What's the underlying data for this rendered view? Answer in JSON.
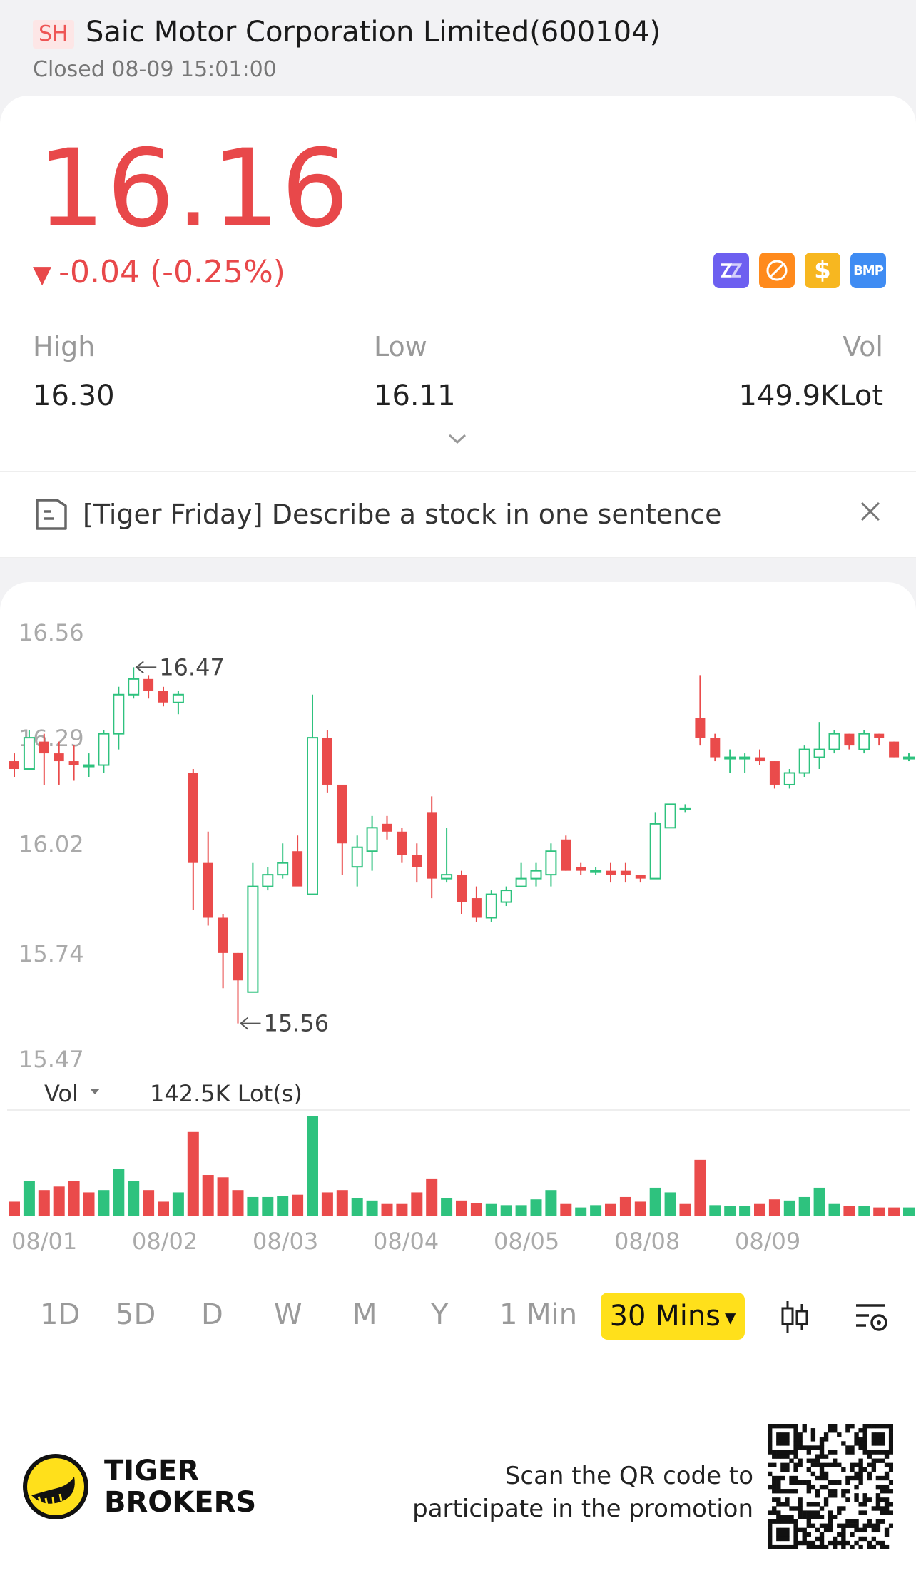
{
  "header": {
    "exchange": "SH",
    "title": "Saic Motor Corporation Limited(600104)",
    "status": "Closed 08-09 15:01:00"
  },
  "quote": {
    "price": "16.16",
    "change": "-0.04 (-0.25%)",
    "price_color": "#e8484a",
    "badges": [
      "zz-icon",
      "no-short-icon",
      "dollar-icon",
      "BMP"
    ],
    "high_label": "High",
    "high_value": "16.30",
    "low_label": "Low",
    "low_value": "16.11",
    "vol_label": "Vol",
    "vol_value": "149.9KLot"
  },
  "notice": {
    "text": "[Tiger Friday] Describe a stock in one sentence"
  },
  "chart": {
    "volume_label": "Vol",
    "volume_value": "142.5K Lot(s)",
    "high_marker": "16.47",
    "low_marker": "15.56",
    "timeframes": [
      "1D",
      "5D",
      "D",
      "W",
      "M",
      "Y",
      "1 Min"
    ],
    "active_timeframe": "30 Mins"
  },
  "chart_data": {
    "type": "candlestick",
    "y_ticks": [
      "16.56",
      "16.29",
      "16.02",
      "15.74",
      "15.47"
    ],
    "ylim": [
      15.47,
      16.56
    ],
    "x_tick_labels": [
      "08/01",
      "08/02",
      "08/03",
      "08/04",
      "08/05",
      "08/08",
      "08/09"
    ],
    "up_color": "#2ec27e",
    "down_color": "#ea4b4b",
    "candles": [
      {
        "o": 16.23,
        "h": 16.25,
        "l": 16.19,
        "c": 16.21
      },
      {
        "o": 16.21,
        "h": 16.31,
        "l": 16.21,
        "c": 16.29
      },
      {
        "o": 16.28,
        "h": 16.3,
        "l": 16.17,
        "c": 16.25
      },
      {
        "o": 16.25,
        "h": 16.28,
        "l": 16.17,
        "c": 16.23
      },
      {
        "o": 16.23,
        "h": 16.27,
        "l": 16.18,
        "c": 16.22
      },
      {
        "o": 16.22,
        "h": 16.25,
        "l": 16.19,
        "c": 16.22
      },
      {
        "o": 16.22,
        "h": 16.31,
        "l": 16.2,
        "c": 16.3
      },
      {
        "o": 16.3,
        "h": 16.42,
        "l": 16.26,
        "c": 16.4
      },
      {
        "o": 16.4,
        "h": 16.47,
        "l": 16.39,
        "c": 16.44
      },
      {
        "o": 16.44,
        "h": 16.45,
        "l": 16.39,
        "c": 16.41
      },
      {
        "o": 16.41,
        "h": 16.42,
        "l": 16.37,
        "c": 16.38
      },
      {
        "o": 16.38,
        "h": 16.41,
        "l": 16.35,
        "c": 16.4
      },
      {
        "o": 16.2,
        "h": 16.21,
        "l": 15.85,
        "c": 15.97
      },
      {
        "o": 15.97,
        "h": 16.05,
        "l": 15.81,
        "c": 15.83
      },
      {
        "o": 15.83,
        "h": 15.84,
        "l": 15.65,
        "c": 15.74
      },
      {
        "o": 15.74,
        "h": 15.74,
        "l": 15.56,
        "c": 15.67
      },
      {
        "o": 15.64,
        "h": 15.97,
        "l": 15.64,
        "c": 15.91
      },
      {
        "o": 15.91,
        "h": 15.96,
        "l": 15.9,
        "c": 15.94
      },
      {
        "o": 15.94,
        "h": 16.02,
        "l": 15.93,
        "c": 15.97
      },
      {
        "o": 16.0,
        "h": 16.04,
        "l": 15.92,
        "c": 15.91
      },
      {
        "o": 15.89,
        "h": 16.4,
        "l": 15.89,
        "c": 16.29
      },
      {
        "o": 16.29,
        "h": 16.31,
        "l": 16.15,
        "c": 16.17
      },
      {
        "o": 16.17,
        "h": 16.17,
        "l": 15.94,
        "c": 16.02
      },
      {
        "o": 15.96,
        "h": 16.04,
        "l": 15.91,
        "c": 16.01
      },
      {
        "o": 16.0,
        "h": 16.09,
        "l": 15.95,
        "c": 16.06
      },
      {
        "o": 16.07,
        "h": 16.09,
        "l": 16.03,
        "c": 16.05
      },
      {
        "o": 16.05,
        "h": 16.06,
        "l": 15.97,
        "c": 15.99
      },
      {
        "o": 15.99,
        "h": 16.02,
        "l": 15.92,
        "c": 15.96
      },
      {
        "o": 16.1,
        "h": 16.14,
        "l": 15.88,
        "c": 15.93
      },
      {
        "o": 15.93,
        "h": 16.06,
        "l": 15.92,
        "c": 15.94
      },
      {
        "o": 15.94,
        "h": 15.95,
        "l": 15.84,
        "c": 15.87
      },
      {
        "o": 15.88,
        "h": 15.91,
        "l": 15.82,
        "c": 15.83
      },
      {
        "o": 15.83,
        "h": 15.9,
        "l": 15.82,
        "c": 15.89
      },
      {
        "o": 15.87,
        "h": 15.91,
        "l": 15.86,
        "c": 15.9
      },
      {
        "o": 15.91,
        "h": 15.97,
        "l": 15.91,
        "c": 15.93
      },
      {
        "o": 15.93,
        "h": 15.97,
        "l": 15.91,
        "c": 15.95
      },
      {
        "o": 15.94,
        "h": 16.02,
        "l": 15.91,
        "c": 16.0
      },
      {
        "o": 16.03,
        "h": 16.04,
        "l": 15.95,
        "c": 15.95
      },
      {
        "o": 15.96,
        "h": 15.97,
        "l": 15.94,
        "c": 15.95
      },
      {
        "o": 15.95,
        "h": 15.96,
        "l": 15.94,
        "c": 15.95
      },
      {
        "o": 15.95,
        "h": 15.97,
        "l": 15.92,
        "c": 15.94
      },
      {
        "o": 15.95,
        "h": 15.97,
        "l": 15.92,
        "c": 15.94
      },
      {
        "o": 15.94,
        "h": 15.94,
        "l": 15.92,
        "c": 15.93
      },
      {
        "o": 15.93,
        "h": 16.1,
        "l": 15.93,
        "c": 16.07
      },
      {
        "o": 16.06,
        "h": 16.12,
        "l": 16.06,
        "c": 16.12
      },
      {
        "o": 16.11,
        "h": 16.12,
        "l": 16.1,
        "c": 16.11
      },
      {
        "o": 16.34,
        "h": 16.45,
        "l": 16.27,
        "c": 16.29
      },
      {
        "o": 16.29,
        "h": 16.3,
        "l": 16.23,
        "c": 16.24
      },
      {
        "o": 16.24,
        "h": 16.26,
        "l": 16.2,
        "c": 16.24
      },
      {
        "o": 16.24,
        "h": 16.25,
        "l": 16.2,
        "c": 16.24
      },
      {
        "o": 16.24,
        "h": 16.26,
        "l": 16.22,
        "c": 16.23
      },
      {
        "o": 16.23,
        "h": 16.23,
        "l": 16.16,
        "c": 16.17
      },
      {
        "o": 16.17,
        "h": 16.21,
        "l": 16.16,
        "c": 16.2
      },
      {
        "o": 16.2,
        "h": 16.27,
        "l": 16.19,
        "c": 16.26
      },
      {
        "o": 16.24,
        "h": 16.33,
        "l": 16.21,
        "c": 16.26
      },
      {
        "o": 16.26,
        "h": 16.31,
        "l": 16.25,
        "c": 16.3
      },
      {
        "o": 16.3,
        "h": 16.3,
        "l": 16.26,
        "c": 16.27
      },
      {
        "o": 16.26,
        "h": 16.31,
        "l": 16.25,
        "c": 16.3
      },
      {
        "o": 16.3,
        "h": 16.3,
        "l": 16.27,
        "c": 16.29
      },
      {
        "o": 16.28,
        "h": 16.28,
        "l": 16.24,
        "c": 16.24
      },
      {
        "o": 16.24,
        "h": 16.25,
        "l": 16.23,
        "c": 16.24
      },
      {
        "o": 16.23,
        "h": 16.24,
        "l": 16.22,
        "c": 16.23
      }
    ],
    "volume": [
      12,
      30,
      22,
      25,
      30,
      20,
      22,
      40,
      30,
      22,
      12,
      20,
      72,
      35,
      33,
      22,
      16,
      16,
      17,
      18,
      86,
      20,
      22,
      15,
      13,
      10,
      10,
      20,
      32,
      15,
      13,
      11,
      10,
      9,
      9,
      14,
      22,
      10,
      7,
      9,
      10,
      16,
      12,
      24,
      20,
      10,
      48,
      9,
      8,
      8,
      10,
      14,
      13,
      16,
      24,
      10,
      8,
      8,
      7,
      7,
      7,
      12
    ],
    "volume_colors": [
      "d",
      "u",
      "d",
      "d",
      "d",
      "d",
      "u",
      "u",
      "u",
      "d",
      "d",
      "u",
      "d",
      "d",
      "d",
      "d",
      "u",
      "u",
      "u",
      "d",
      "u",
      "d",
      "d",
      "u",
      "u",
      "d",
      "d",
      "d",
      "d",
      "u",
      "d",
      "d",
      "u",
      "u",
      "u",
      "u",
      "u",
      "d",
      "u",
      "u",
      "d",
      "d",
      "d",
      "u",
      "u",
      "d",
      "d",
      "u",
      "u",
      "u",
      "d",
      "d",
      "u",
      "u",
      "u",
      "u",
      "d",
      "u",
      "d",
      "d",
      "u",
      "d"
    ]
  },
  "footer": {
    "brand_line1": "TIGER",
    "brand_line2": "BROKERS",
    "promo_line1": "Scan the QR code to",
    "promo_line2": "participate in the promotion"
  }
}
